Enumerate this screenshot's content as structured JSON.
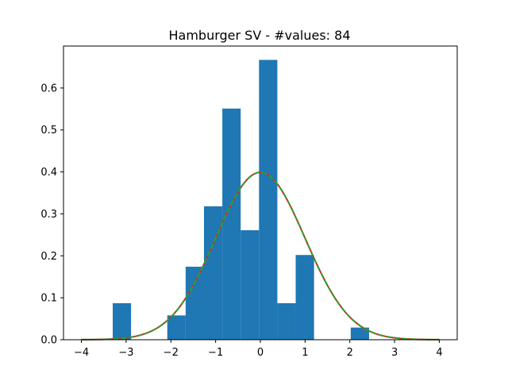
{
  "chart_data": {
    "type": "bar",
    "title": "Hamburger SV - #values: 84",
    "xlabel": "",
    "ylabel": "",
    "xlim": [
      -4.4,
      4.4
    ],
    "ylim": [
      0,
      0.7
    ],
    "grid": false,
    "x_ticks": [
      -4,
      -3,
      -2,
      -1,
      0,
      1,
      2,
      3,
      4
    ],
    "x_tick_labels": [
      "−4",
      "−3",
      "−2",
      "−1",
      "0",
      "1",
      "2",
      "3",
      "4"
    ],
    "y_ticks": [
      0.0,
      0.1,
      0.2,
      0.3,
      0.4,
      0.5,
      0.6
    ],
    "y_tick_labels": [
      "0.0",
      "0.1",
      "0.2",
      "0.3",
      "0.4",
      "0.5",
      "0.6"
    ],
    "histogram": {
      "color": "#1f77b4",
      "bin_width": 0.41,
      "bin_starts": [
        -3.3,
        -2.08,
        -1.67,
        -1.26,
        -0.85,
        -0.44,
        -0.03,
        0.38,
        0.79,
        2.02
      ],
      "values": [
        0.087,
        0.058,
        0.174,
        0.318,
        0.551,
        0.261,
        0.667,
        0.087,
        0.202,
        0.029
      ]
    },
    "curves": [
      {
        "type": "normal_pdf",
        "mean": 0,
        "std": 1,
        "color": "#d62728",
        "style": "solid",
        "x_range": [
          -4,
          4
        ]
      },
      {
        "type": "normal_pdf",
        "mean": 0,
        "std": 1,
        "color": "#2ca02c",
        "style": "dashed",
        "x_range": [
          -4,
          4
        ]
      }
    ]
  }
}
